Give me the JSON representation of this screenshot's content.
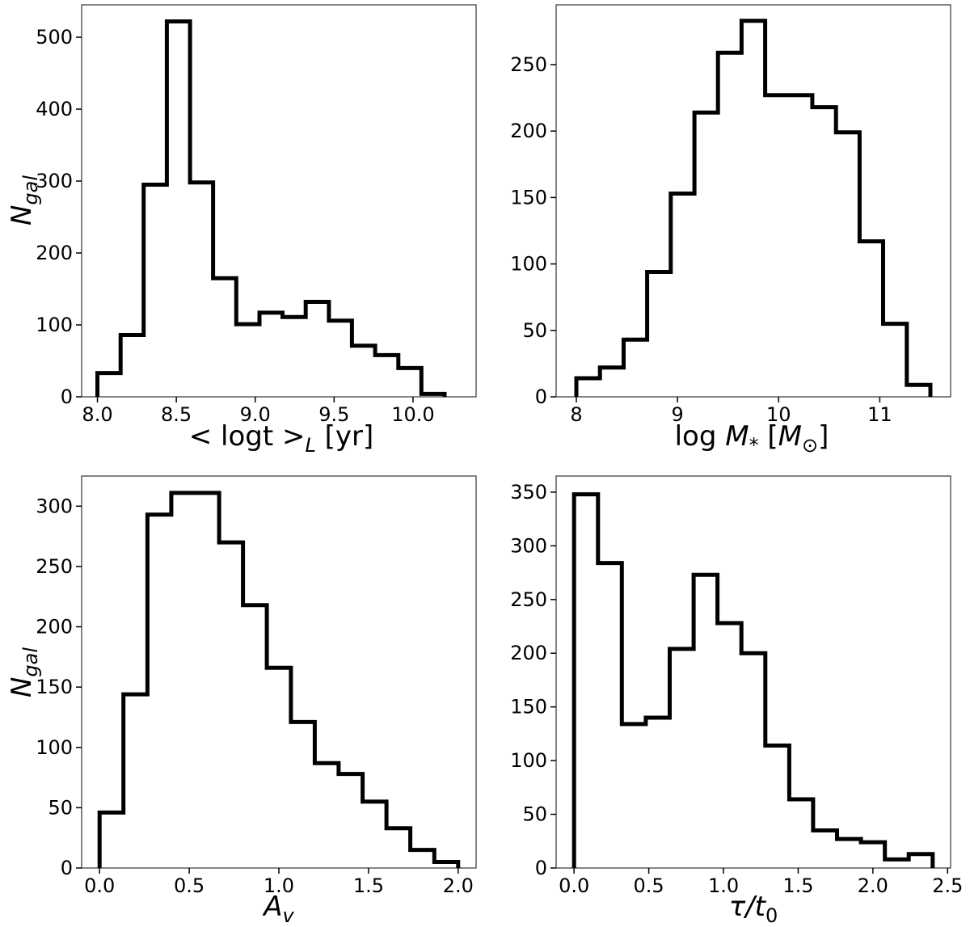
{
  "chart_data": [
    {
      "type": "histogram",
      "bin_edges": [
        8.0,
        8.147,
        8.293,
        8.44,
        8.587,
        8.733,
        8.88,
        9.027,
        9.173,
        9.32,
        9.467,
        9.613,
        9.76,
        9.907,
        10.053,
        10.2
      ],
      "counts": [
        33,
        86,
        295,
        522,
        298,
        165,
        101,
        117,
        111,
        132,
        106,
        71,
        58,
        40,
        4
      ],
      "xlim": [
        7.9,
        10.4
      ],
      "ylim": [
        0,
        545
      ],
      "xticks": [
        8.0,
        8.5,
        9.0,
        9.5,
        10.0
      ],
      "xtick_labels": [
        "8.0",
        "8.5",
        "9.0",
        "9.5",
        "10.0"
      ],
      "yticks": [
        0,
        100,
        200,
        300,
        400,
        500
      ],
      "ytick_labels": [
        "0",
        "100",
        "200",
        "300",
        "400",
        "500"
      ],
      "xlabel_parts": [
        "< logt >",
        "L",
        " [yr]"
      ],
      "ylabel_parts": [
        "N",
        "gal"
      ]
    },
    {
      "type": "histogram",
      "bin_edges": [
        8.0,
        8.233,
        8.467,
        8.7,
        8.933,
        9.167,
        9.4,
        9.633,
        9.867,
        10.1,
        10.333,
        10.567,
        10.8,
        11.033,
        11.267,
        11.5
      ],
      "counts": [
        14,
        22,
        43,
        94,
        153,
        214,
        259,
        283,
        227,
        227,
        218,
        199,
        117,
        55,
        9
      ],
      "xlim": [
        7.8,
        11.7
      ],
      "ylim": [
        0,
        295
      ],
      "xticks": [
        8,
        9,
        10,
        11
      ],
      "xtick_labels": [
        "8",
        "9",
        "10",
        "11"
      ],
      "yticks": [
        0,
        50,
        100,
        150,
        200,
        250
      ],
      "ytick_labels": [
        "0",
        "50",
        "100",
        "150",
        "200",
        "250"
      ],
      "xlabel_parts": [
        "log ",
        "M",
        "*",
        " [",
        "M",
        "⊙",
        "]"
      ],
      "ylabel_parts": []
    },
    {
      "type": "histogram",
      "bin_edges": [
        0.0,
        0.133,
        0.267,
        0.4,
        0.533,
        0.667,
        0.8,
        0.933,
        1.067,
        1.2,
        1.333,
        1.467,
        1.6,
        1.733,
        1.867,
        2.0
      ],
      "counts": [
        46,
        144,
        293,
        311,
        311,
        270,
        218,
        166,
        121,
        87,
        78,
        55,
        33,
        15,
        5
      ],
      "xlim": [
        -0.1,
        2.1
      ],
      "ylim": [
        0,
        325
      ],
      "xticks": [
        0.0,
        0.5,
        1.0,
        1.5,
        2.0
      ],
      "xtick_labels": [
        "0.0",
        "0.5",
        "1.0",
        "1.5",
        "2.0"
      ],
      "yticks": [
        0,
        50,
        100,
        150,
        200,
        250,
        300
      ],
      "ytick_labels": [
        "0",
        "50",
        "100",
        "150",
        "200",
        "250",
        "300"
      ],
      "xlabel_parts": [
        "A",
        "v"
      ],
      "ylabel_parts": [
        "N",
        "gal"
      ]
    },
    {
      "type": "histogram",
      "bin_edges": [
        0.0,
        0.16,
        0.32,
        0.48,
        0.64,
        0.8,
        0.96,
        1.12,
        1.28,
        1.44,
        1.6,
        1.76,
        1.92,
        2.08,
        2.24,
        2.4
      ],
      "counts": [
        348,
        284,
        134,
        140,
        204,
        273,
        228,
        200,
        114,
        64,
        35,
        27,
        24,
        8,
        13
      ],
      "xlim": [
        -0.12,
        2.52
      ],
      "ylim": [
        0,
        365
      ],
      "xticks": [
        0.0,
        0.5,
        1.0,
        1.5,
        2.0,
        2.5
      ],
      "xtick_labels": [
        "0.0",
        "0.5",
        "1.0",
        "1.5",
        "2.0",
        "2.5"
      ],
      "yticks": [
        0,
        50,
        100,
        150,
        200,
        250,
        300,
        350
      ],
      "ytick_labels": [
        "0",
        "50",
        "100",
        "150",
        "200",
        "250",
        "300",
        "350"
      ],
      "xlabel_parts": [
        "τ/t",
        "0"
      ],
      "ylabel_parts": []
    }
  ]
}
